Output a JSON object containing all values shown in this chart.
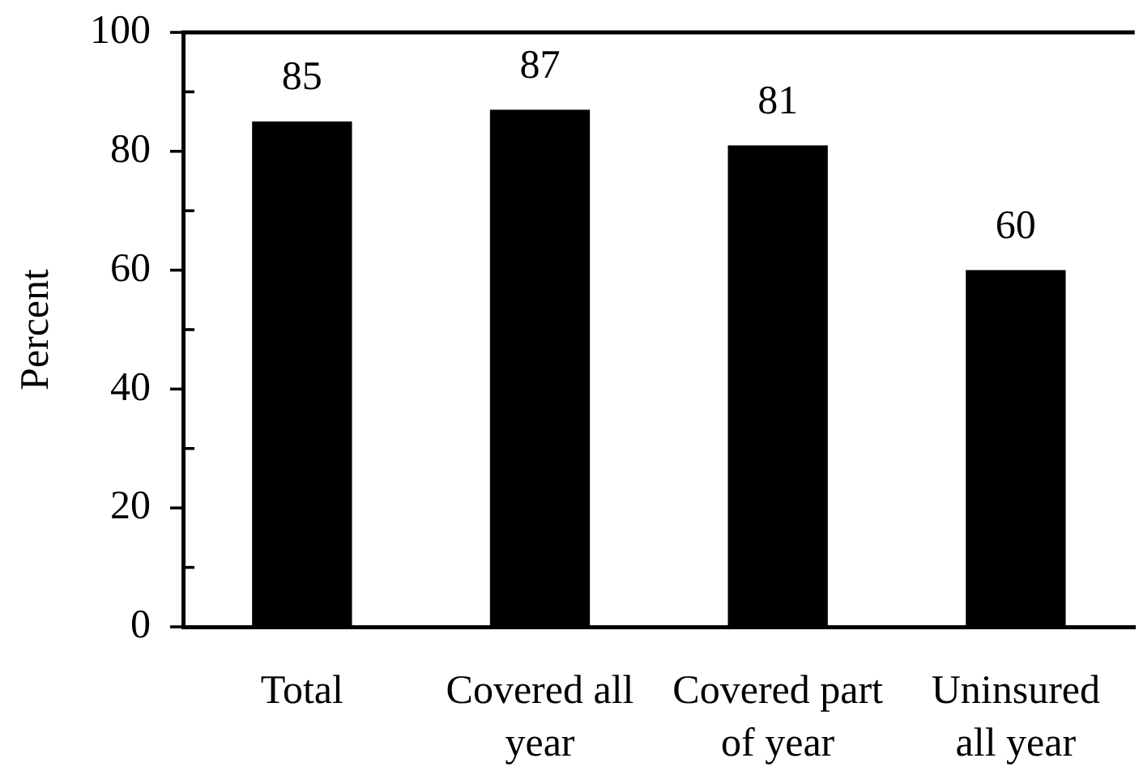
{
  "chart_data": {
    "type": "bar",
    "ylabel": "Percent",
    "categories": [
      "Total",
      "Covered all year",
      "Covered part of year",
      "Uninsured all year"
    ],
    "values": [
      85,
      87,
      81,
      60
    ],
    "color": "#000000",
    "ylim": [
      0,
      100
    ],
    "yticks": [
      0,
      {
        "value": 10,
        "label": null
      },
      20,
      {
        "value": 30,
        "label": null
      },
      40,
      {
        "value": 50,
        "label": null
      },
      60,
      {
        "value": 70,
        "label": null
      },
      80,
      {
        "value": 90,
        "label": null
      },
      100
    ],
    "data_labels": true
  }
}
